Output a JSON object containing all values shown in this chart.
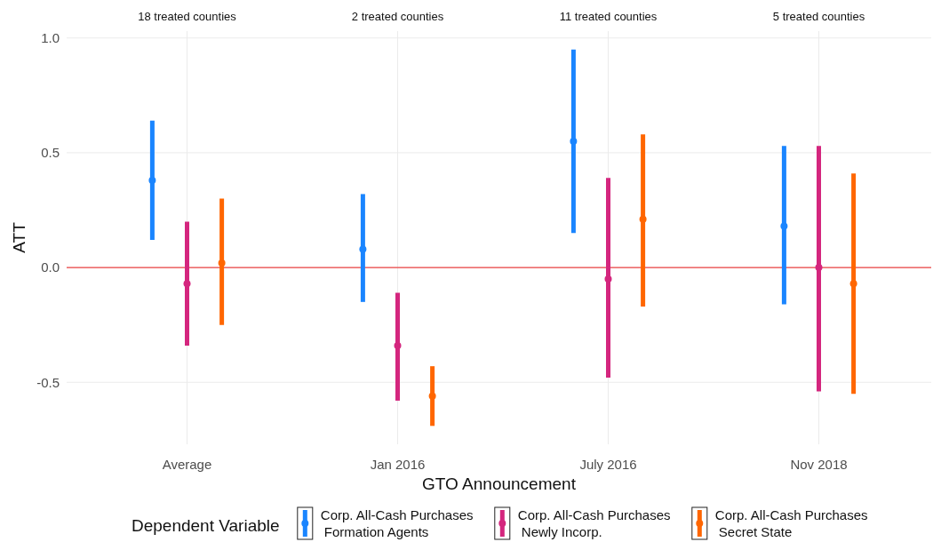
{
  "chart_data": {
    "type": "scatter",
    "xlabel": "GTO Announcement",
    "ylabel": "ATT",
    "legend_title": "Dependent Variable",
    "categories": [
      "Average",
      "Jan 2016",
      "July 2016",
      "Nov 2018"
    ],
    "series": [
      {
        "name": "Corp. All-Cash Purchases\nFormation Agents",
        "color": "#1a85ff",
        "values": [
          0.38,
          0.08,
          0.55,
          0.18
        ],
        "errors": [
          [
            0.12,
            0.64
          ],
          [
            -0.15,
            0.32
          ],
          [
            0.15,
            0.95
          ],
          [
            -0.16,
            0.53
          ]
        ]
      },
      {
        "name": "Corp. All-Cash Purchases\nNewly Incorp.",
        "color": "#d4267e",
        "values": [
          -0.07,
          -0.34,
          -0.05,
          0.0
        ],
        "errors": [
          [
            -0.34,
            0.2
          ],
          [
            -0.58,
            -0.11
          ],
          [
            -0.48,
            0.39
          ],
          [
            -0.54,
            0.53
          ]
        ]
      },
      {
        "name": "Corp. All-Cash Purchases\nSecret State",
        "color": "#ff6600",
        "values": [
          0.02,
          -0.56,
          0.21,
          -0.07
        ],
        "errors": [
          [
            -0.25,
            0.3
          ],
          [
            -0.69,
            -0.43
          ],
          [
            -0.17,
            0.58
          ],
          [
            -0.55,
            0.41
          ]
        ]
      }
    ],
    "ylim": [
      -0.77,
      1.03
    ],
    "yticks": [
      {
        "value": -0.5,
        "label": "-0.5"
      },
      {
        "value": 0,
        "label": "0.0"
      },
      {
        "value": 0.5,
        "label": "0.5"
      },
      {
        "value": 1,
        "label": "1.0"
      }
    ],
    "grid": true,
    "legend": "bottom",
    "marker": "circle",
    "ref_lines": [
      {
        "axis": "y",
        "value": 0,
        "color": "#ee4444"
      }
    ],
    "annotations": [
      "18 treated counties",
      "2 treated counties",
      "11 treated counties",
      "5 treated counties"
    ]
  }
}
